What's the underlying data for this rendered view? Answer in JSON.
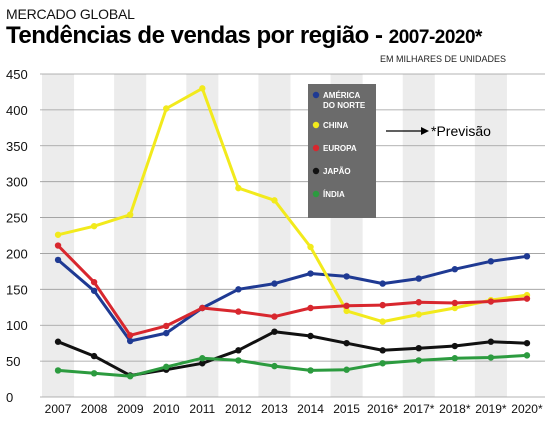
{
  "header": {
    "supertitle": "MERCADO GLOBAL",
    "title": "Tendências de vendas por região - ",
    "title_years": "2007-2020*",
    "subtitle": "EM MILHARES DE UNIDADES"
  },
  "forecast_note": "*Previsão",
  "colors": {
    "america": "#1f3a93",
    "china": "#f2ea1c",
    "europa": "#d8272e",
    "japao": "#111111",
    "india": "#2c9b3f",
    "band": "#ececec",
    "legend_bg": "#6b6b6b"
  },
  "chart_data": {
    "type": "line",
    "categories": [
      "2007",
      "2008",
      "2009",
      "2010",
      "2011",
      "2012",
      "2013",
      "2014",
      "2015",
      "2016*",
      "2017*",
      "2018*",
      "2019*",
      "2020*"
    ],
    "ylim": [
      0,
      450
    ],
    "yticks": [
      0,
      50,
      100,
      150,
      200,
      250,
      300,
      350,
      400,
      450
    ],
    "grid": true,
    "legend_position": "top-center",
    "series": [
      {
        "name": "AMÉRICA DO NORTE",
        "legend_lines": [
          "AMÉRICA",
          "DO NORTE"
        ],
        "color": "#1f3a93",
        "values": [
          191,
          148,
          78,
          89,
          124,
          150,
          158,
          172,
          168,
          158,
          165,
          178,
          189,
          196
        ]
      },
      {
        "name": "CHINA",
        "legend_lines": [
          "CHINA"
        ],
        "color": "#f2ea1c",
        "values": [
          226,
          238,
          254,
          402,
          430,
          291,
          274,
          209,
          120,
          105,
          115,
          124,
          135,
          142
        ]
      },
      {
        "name": "EUROPA",
        "legend_lines": [
          "EUROPA"
        ],
        "color": "#d8272e",
        "values": [
          211,
          160,
          86,
          99,
          124,
          119,
          112,
          124,
          127,
          128,
          132,
          131,
          133,
          137
        ]
      },
      {
        "name": "JAPÃO",
        "legend_lines": [
          "JAPÃO"
        ],
        "color": "#111111",
        "values": [
          77,
          57,
          30,
          38,
          47,
          65,
          91,
          85,
          75,
          65,
          68,
          71,
          77,
          75
        ]
      },
      {
        "name": "ÍNDIA",
        "legend_lines": [
          "ÍNDIA"
        ],
        "color": "#2c9b3f",
        "values": [
          37,
          33,
          29,
          42,
          54,
          51,
          43,
          37,
          38,
          47,
          51,
          54,
          55,
          58
        ]
      }
    ]
  }
}
